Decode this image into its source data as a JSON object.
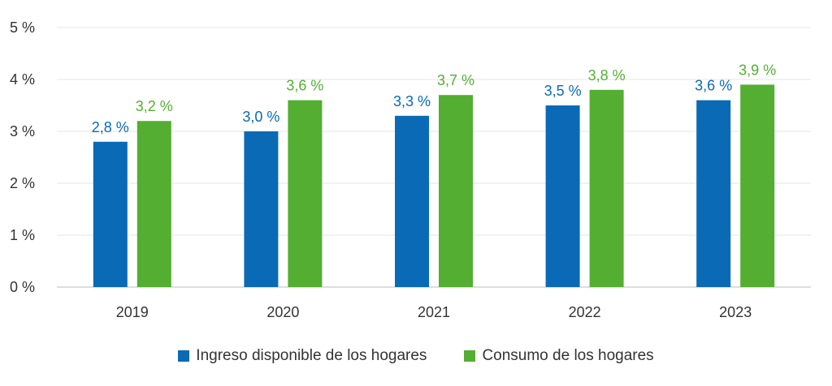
{
  "chart_data": {
    "type": "bar",
    "categories": [
      "2019",
      "2020",
      "2021",
      "2022",
      "2023"
    ],
    "series": [
      {
        "name": "Ingreso disponible de los hogares",
        "color": "#0a6ab6",
        "values": [
          2.8,
          3.0,
          3.3,
          3.5,
          3.6
        ],
        "labels": [
          "2,8 %",
          "3,0 %",
          "3,3 %",
          "3,5 %",
          "3,6 %"
        ]
      },
      {
        "name": "Consumo de los hogares",
        "color": "#53ae32",
        "values": [
          3.2,
          3.6,
          3.7,
          3.8,
          3.9
        ],
        "labels": [
          "3,2 %",
          "3,6 %",
          "3,7 %",
          "3,8 %",
          "3,9 %"
        ]
      }
    ],
    "ylim": [
      0,
      5
    ],
    "yticks": [
      0,
      1,
      2,
      3,
      4,
      5
    ],
    "ytick_labels": [
      "0 %",
      "1 %",
      "2 %",
      "3 %",
      "4 %",
      "5 %"
    ],
    "grid": true,
    "legend_position": "bottom"
  }
}
